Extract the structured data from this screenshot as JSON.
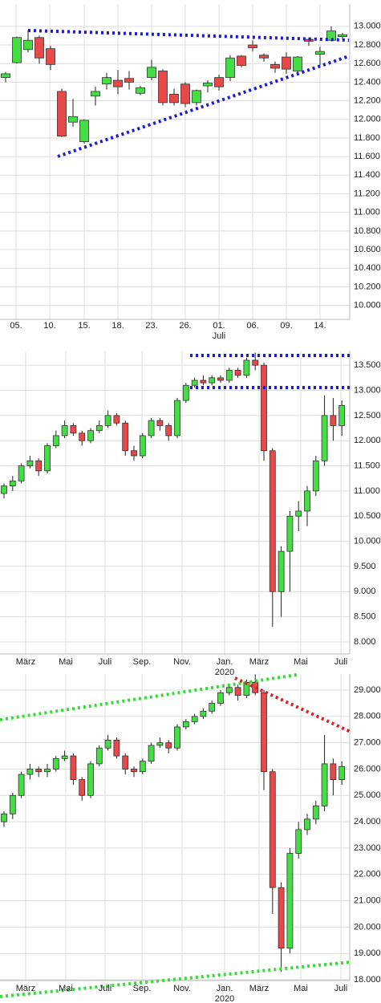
{
  "chart_data": [
    {
      "type": "candlestick",
      "up_color": "#44dd44",
      "down_color": "#e84848",
      "grid": true,
      "x_labels": [
        "05.",
        "10.",
        "15.",
        "18.",
        "23.",
        "26.",
        "01.\nJuli",
        "06.",
        "09.",
        "14."
      ],
      "open": [
        12450,
        12610,
        12750,
        12880,
        12760,
        12300,
        11970,
        11760,
        12250,
        12380,
        12420,
        12440,
        12280,
        12450,
        12520,
        12270,
        12380,
        12180,
        12360,
        12450,
        12450,
        12680,
        12800,
        12690,
        12590,
        12670,
        12520,
        12860,
        12700,
        12850,
        12890
      ],
      "high": [
        12510,
        12890,
        12960,
        12900,
        12790,
        12330,
        12220,
        12000,
        12350,
        12500,
        12530,
        12520,
        12360,
        12640,
        12540,
        12330,
        12400,
        12320,
        12420,
        12480,
        12690,
        12690,
        12850,
        12710,
        12620,
        12720,
        12680,
        12880,
        12780,
        13000,
        12930
      ],
      "low": [
        12400,
        12600,
        12720,
        12600,
        12530,
        11810,
        11920,
        11740,
        12150,
        12320,
        12270,
        12320,
        12260,
        12420,
        12150,
        12150,
        12130,
        12150,
        12290,
        12310,
        12410,
        12560,
        12730,
        12620,
        12500,
        12490,
        12500,
        12790,
        12580,
        12840,
        12860
      ],
      "close": [
        12490,
        12880,
        12850,
        12660,
        12590,
        11820,
        12030,
        11990,
        12300,
        12450,
        12350,
        12400,
        12340,
        12560,
        12180,
        12180,
        12170,
        12310,
        12390,
        12350,
        12660,
        12580,
        12770,
        12660,
        12550,
        12540,
        12670,
        12840,
        12730,
        12950,
        12910
      ],
      "ylim": [
        9850,
        13240
      ],
      "yticks": [
        {
          "value": 10000,
          "label": "10.000"
        },
        {
          "value": 10200,
          "label": "10.200"
        },
        {
          "value": 10400,
          "label": "10.400"
        },
        {
          "value": 10600,
          "label": "10.600"
        },
        {
          "value": 10800,
          "label": "10.800"
        },
        {
          "value": 11000,
          "label": "11.000"
        },
        {
          "value": 11200,
          "label": "11.200"
        },
        {
          "value": 11400,
          "label": "11.400"
        },
        {
          "value": 11600,
          "label": "11.600"
        },
        {
          "value": 11800,
          "label": "11.800"
        },
        {
          "value": 12000,
          "label": "12.000"
        },
        {
          "value": 12200,
          "label": "12.200"
        },
        {
          "value": 12400,
          "label": "12.400"
        },
        {
          "value": 12600,
          "label": "12.600"
        },
        {
          "value": 12800,
          "label": "12.800"
        },
        {
          "value": 13000,
          "label": "13.000"
        }
      ]
    },
    {
      "type": "candlestick",
      "up_color": "#44dd44",
      "down_color": "#e84848",
      "grid": true,
      "x_labels": [
        "März",
        "Mai",
        "Juli",
        "Sep.",
        "Nov.",
        "Jan.\n2020",
        "März",
        "Mai",
        "Juli"
      ],
      "open": [
        10950,
        11100,
        11200,
        11500,
        11600,
        11400,
        11900,
        12100,
        12300,
        12150,
        12000,
        12200,
        12300,
        12500,
        12350,
        11800,
        11700,
        12100,
        12400,
        12300,
        12100,
        12800,
        13100,
        13200,
        13150,
        13250,
        13200,
        13400,
        13300,
        13600,
        13500,
        11800,
        9000,
        9800,
        10500,
        10600,
        11000,
        11600,
        12500,
        12300
      ],
      "high": [
        11150,
        11300,
        11550,
        11700,
        11650,
        11950,
        12200,
        12400,
        12350,
        12200,
        12250,
        12400,
        12600,
        12550,
        12400,
        11900,
        12150,
        12450,
        12450,
        12350,
        12850,
        13150,
        13250,
        13300,
        13300,
        13300,
        13450,
        13450,
        13650,
        13750,
        13550,
        11850,
        9900,
        10600,
        10800,
        11100,
        11700,
        12900,
        12850,
        12800
      ],
      "low": [
        10850,
        11000,
        11150,
        11450,
        11300,
        11350,
        11850,
        12050,
        12100,
        11900,
        11950,
        12150,
        12250,
        12300,
        11700,
        11600,
        11650,
        12050,
        12200,
        12000,
        12050,
        12750,
        13050,
        13100,
        13100,
        13150,
        13150,
        13250,
        13250,
        13400,
        11600,
        8300,
        8500,
        9000,
        10200,
        10300,
        10900,
        11500,
        12000,
        12100
      ],
      "close": [
        11100,
        11200,
        11500,
        11600,
        11400,
        11900,
        12100,
        12300,
        12150,
        12000,
        12200,
        12300,
        12500,
        12350,
        11800,
        11700,
        12100,
        12400,
        12300,
        12100,
        12800,
        13100,
        13200,
        13150,
        13250,
        13200,
        13400,
        13300,
        13600,
        13500,
        11800,
        9000,
        9800,
        10500,
        10600,
        11000,
        11600,
        12500,
        12300,
        12700
      ],
      "ylim": [
        7760,
        13790
      ],
      "yticks": [
        {
          "value": 8000,
          "label": "8.000"
        },
        {
          "value": 8500,
          "label": "8.500"
        },
        {
          "value": 9000,
          "label": "9.000"
        },
        {
          "value": 9500,
          "label": "9.500"
        },
        {
          "value": 10000,
          "label": "10.000"
        },
        {
          "value": 10500,
          "label": "10.500"
        },
        {
          "value": 11000,
          "label": "11.000"
        },
        {
          "value": 11500,
          "label": "11.500"
        },
        {
          "value": 12000,
          "label": "12.000"
        },
        {
          "value": 12500,
          "label": "12.500"
        },
        {
          "value": 13000,
          "label": "13.000"
        },
        {
          "value": 13500,
          "label": "13.500"
        }
      ]
    },
    {
      "type": "candlestick",
      "up_color": "#44dd44",
      "down_color": "#e84848",
      "grid": true,
      "x_labels": [
        "März",
        "Mai",
        "Juli",
        "Sep.",
        "Nov.",
        "Jan.\n2020",
        "März",
        "Mai",
        "Juli"
      ],
      "open": [
        24000,
        24300,
        25000,
        25800,
        26000,
        25900,
        26000,
        26400,
        26500,
        25600,
        25000,
        26200,
        26800,
        27100,
        26500,
        26000,
        25900,
        26300,
        26900,
        27000,
        26800,
        27600,
        27800,
        28000,
        28200,
        28500,
        28900,
        29100,
        28800,
        29300,
        28900,
        25900,
        21500,
        19200,
        22800,
        23700,
        24100,
        24600,
        26200,
        25600
      ],
      "high": [
        24400,
        25100,
        25900,
        26200,
        26100,
        26200,
        26500,
        26700,
        26600,
        25700,
        26300,
        26900,
        27300,
        27200,
        26600,
        26100,
        26400,
        27000,
        27200,
        27100,
        27700,
        27900,
        28100,
        28300,
        28600,
        29000,
        29200,
        29200,
        29400,
        29600,
        29000,
        26000,
        21700,
        23000,
        24000,
        24300,
        24800,
        27300,
        26400,
        26300
      ],
      "low": [
        23800,
        24100,
        24900,
        25600,
        25700,
        25700,
        25900,
        26300,
        25400,
        24800,
        24900,
        26100,
        26700,
        26400,
        25800,
        25700,
        25800,
        26200,
        26800,
        26600,
        26700,
        27500,
        27700,
        27900,
        28100,
        28400,
        28800,
        28600,
        28700,
        28800,
        25200,
        20500,
        18300,
        19000,
        22600,
        23500,
        23900,
        24400,
        25000,
        25400
      ],
      "close": [
        24300,
        25000,
        25800,
        26000,
        25900,
        26000,
        26400,
        26500,
        25600,
        25000,
        26200,
        26800,
        27100,
        26500,
        26000,
        25900,
        26300,
        26900,
        27000,
        26800,
        27600,
        27800,
        28000,
        28200,
        28500,
        28900,
        29100,
        28800,
        29300,
        28900,
        25900,
        21500,
        19200,
        22800,
        23700,
        24100,
        24600,
        26200,
        25600,
        26100
      ],
      "ylim": [
        17970,
        29610
      ],
      "yticks": [
        {
          "value": 18000,
          "label": "18.000"
        },
        {
          "value": 19000,
          "label": "19.000"
        },
        {
          "value": 20000,
          "label": "20.000"
        },
        {
          "value": 21000,
          "label": "21.000"
        },
        {
          "value": 22000,
          "label": "22.000"
        },
        {
          "value": 23000,
          "label": "23.000"
        },
        {
          "value": 24000,
          "label": "24.000"
        },
        {
          "value": 25000,
          "label": "25.000"
        },
        {
          "value": 26000,
          "label": "26.000"
        },
        {
          "value": 27000,
          "label": "27.000"
        },
        {
          "value": 28000,
          "label": "28.000"
        },
        {
          "value": 29000,
          "label": "29.000"
        }
      ]
    }
  ]
}
